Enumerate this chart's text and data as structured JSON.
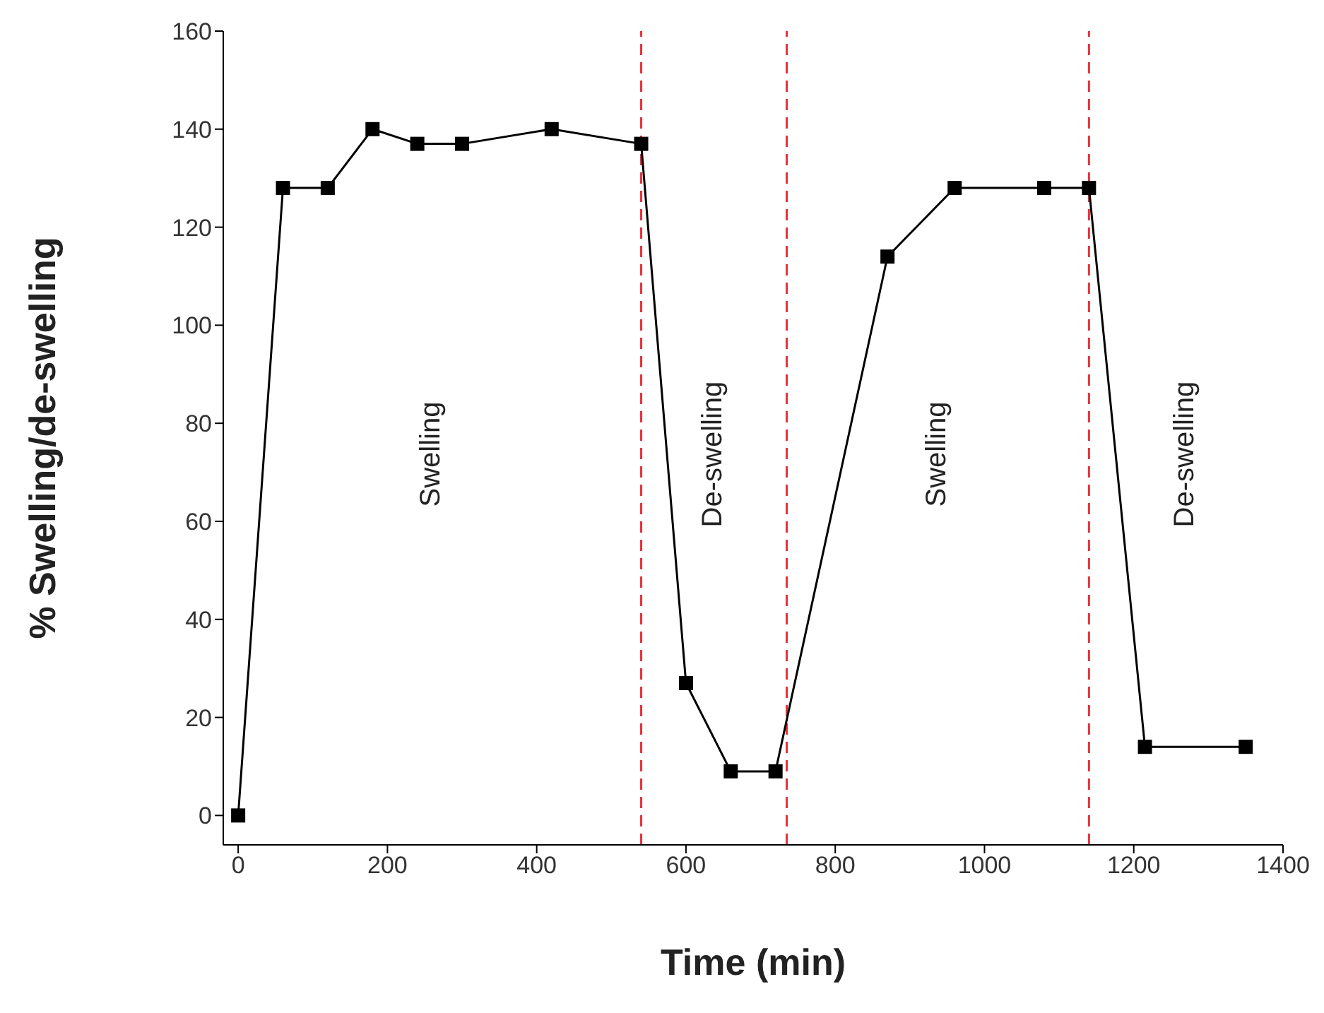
{
  "chart_data": {
    "type": "line",
    "xlabel": "Time (min)",
    "ylabel": "% Swelling/de-swelling",
    "x": [
      0,
      60,
      120,
      180,
      240,
      300,
      420,
      540,
      600,
      660,
      720,
      870,
      960,
      1080,
      1140,
      1215,
      1350
    ],
    "series": [
      {
        "color": "#000000",
        "values": [
          0,
          128,
          128,
          140,
          137,
          137,
          140,
          137,
          27,
          9,
          9,
          114,
          128,
          128,
          128,
          14,
          14
        ]
      }
    ],
    "xlim": [
      -20,
      1400
    ],
    "xticks": [
      0,
      200,
      400,
      600,
      800,
      1000,
      1200,
      1400
    ],
    "ylim": [
      -6,
      160
    ],
    "yticks": [
      0,
      20,
      40,
      60,
      80,
      100,
      120,
      140,
      160
    ],
    "marker": "square",
    "line_style": "solid",
    "grid": false,
    "legend": false,
    "ref_lines": [
      {
        "axis": "x",
        "value": 540,
        "color": "#e8303a",
        "line_style": "dashed"
      },
      {
        "axis": "x",
        "value": 735,
        "color": "#e8303a",
        "line_style": "dashed"
      },
      {
        "axis": "x",
        "value": 1140,
        "color": "#e8303a",
        "line_style": "dashed"
      }
    ],
    "annotations": [
      "Swelling",
      "De-swelling",
      "Swelling",
      "De-swelling"
    ]
  }
}
